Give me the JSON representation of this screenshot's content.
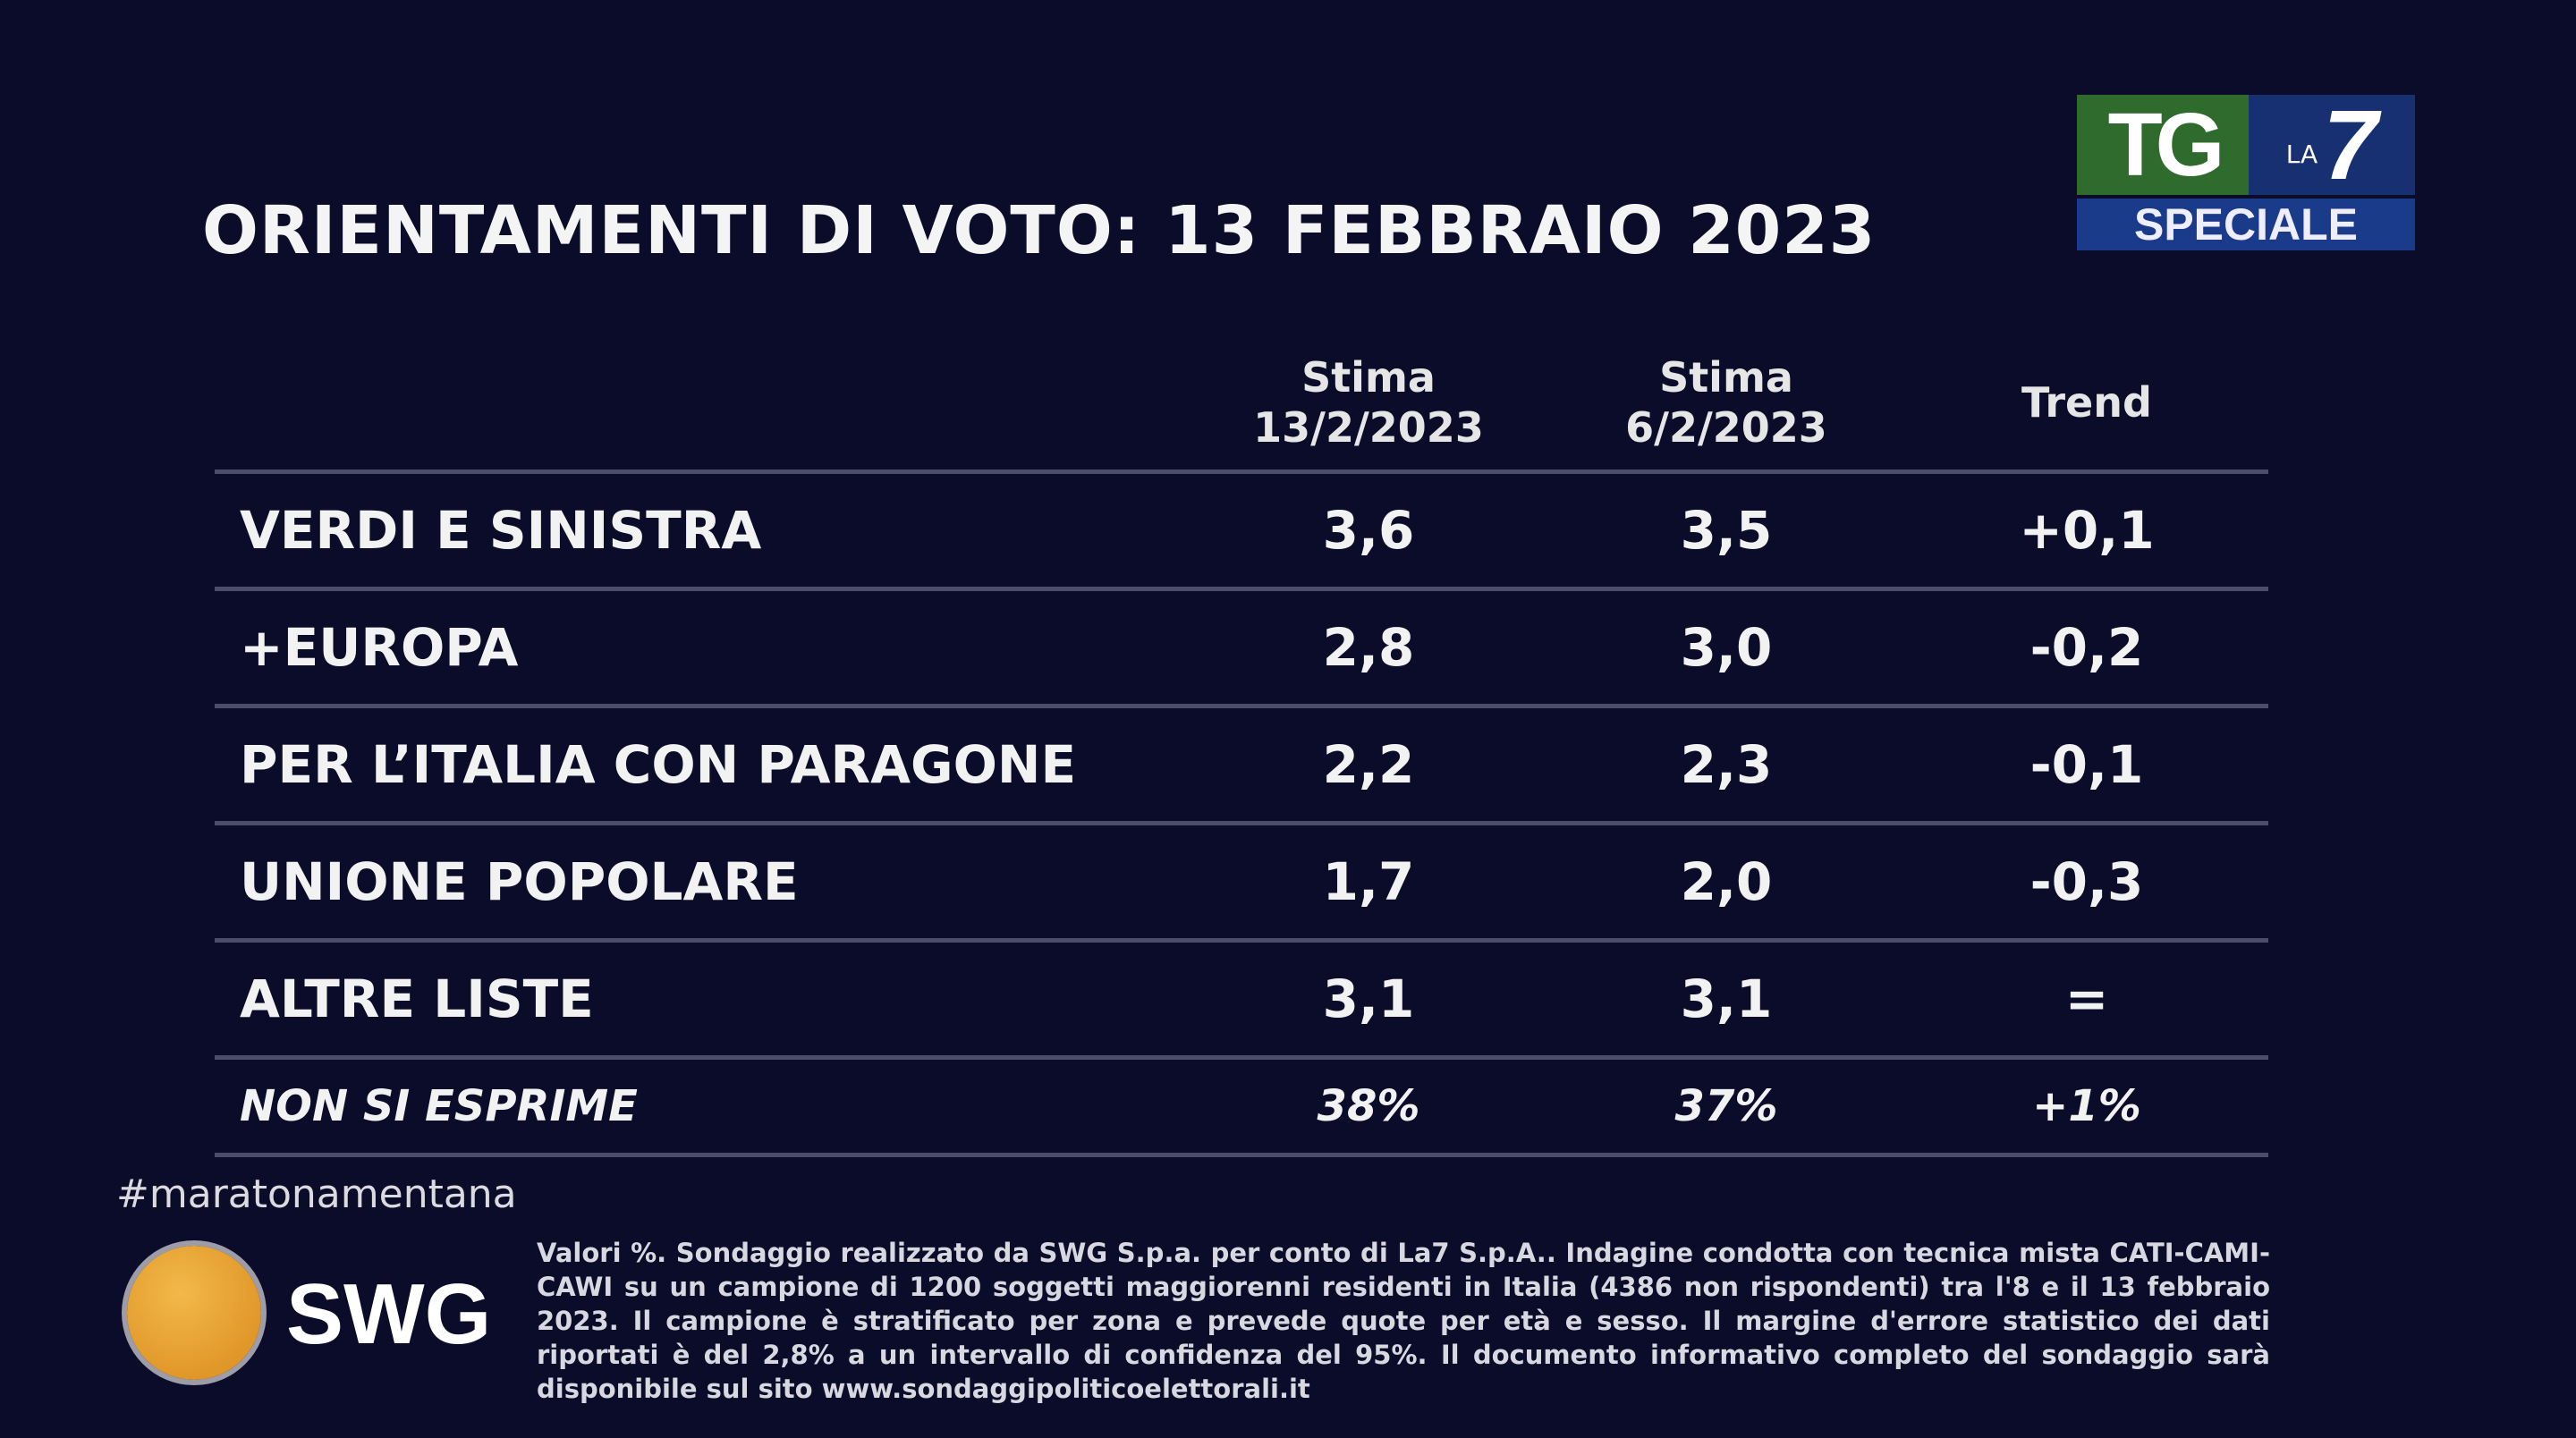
{
  "title": "ORIENTAMENTI DI VOTO: 13 FEBBRAIO 2023",
  "logo": {
    "tg": "TG",
    "la": "LA",
    "seven": "7",
    "speciale": "SPECIALE"
  },
  "table": {
    "headers": [
      {
        "line1": "Stima",
        "line2": "13/2/2023"
      },
      {
        "line1": "Stima",
        "line2": "6/2/2023"
      },
      {
        "line1": "Trend",
        "line2": ""
      }
    ],
    "rows": [
      {
        "label": "VERDI E SINISTRA",
        "current": "3,6",
        "previous": "3,5",
        "trend": "+0,1"
      },
      {
        "label": "+EUROPA",
        "current": "2,8",
        "previous": "3,0",
        "trend": "-0,2"
      },
      {
        "label": "PER L’ITALIA CON PARAGONE",
        "current": "2,2",
        "previous": "2,3",
        "trend": "-0,1"
      },
      {
        "label": "UNIONE POPOLARE",
        "current": "1,7",
        "previous": "2,0",
        "trend": "-0,3"
      },
      {
        "label": "ALTRE LISTE",
        "current": "3,1",
        "previous": "3,1",
        "trend": "="
      },
      {
        "label": "NON SI ESPRIME",
        "current": "38%",
        "previous": "37%",
        "trend": "+1%"
      }
    ]
  },
  "swg_logo": "SWG",
  "hashtag": "#maratonamentana",
  "footnote": "Valori %. Sondaggio realizzato da SWG S.p.a. per conto di La7 S.p.A.. Indagine condotta con tecnica mista CATI-CAMI-CAWI su un campione di 1200 soggetti maggiorenni residenti in Italia (4386 non rispondenti) tra l'8 e il 13 febbraio 2023. Il campione è stratificato per zona e prevede quote per età e sesso. Il margine d'errore statistico dei dati riportati è del 2,8% a un intervallo di confidenza del 95%. Il documento informativo completo del sondaggio sarà disponibile sul sito www.sondaggipoliticoelettorali.it"
}
